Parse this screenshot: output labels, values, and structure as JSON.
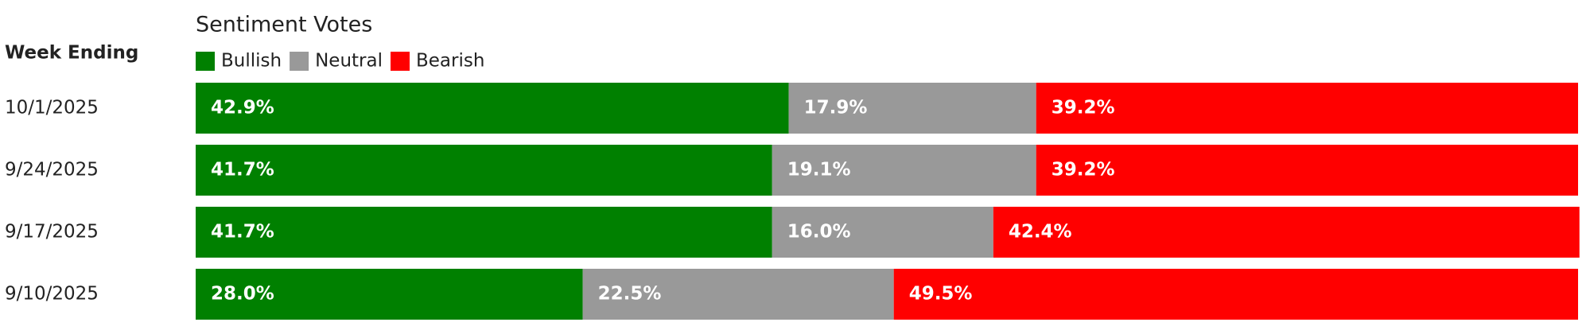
{
  "chart_data": {
    "type": "stacked-bar",
    "orientation": "horizontal",
    "title": "Sentiment Votes",
    "category_label": "Week Ending",
    "categories": [
      "10/1/2025",
      "9/24/2025",
      "9/17/2025",
      "9/10/2025"
    ],
    "series": [
      {
        "name": "Bullish",
        "color": "#008000",
        "values": [
          42.9,
          41.7,
          41.7,
          28.0
        ],
        "value_labels": [
          "42.9%",
          "41.7%",
          "41.7%",
          "28.0%"
        ]
      },
      {
        "name": "Neutral",
        "color": "#999999",
        "values": [
          17.9,
          19.1,
          16.0,
          22.5
        ],
        "value_labels": [
          "17.9%",
          "19.1%",
          "16.0%",
          "22.5%"
        ]
      },
      {
        "name": "Bearish",
        "color": "#ff0000",
        "values": [
          39.2,
          39.2,
          42.4,
          49.5
        ],
        "value_labels": [
          "39.2%",
          "39.2%",
          "42.4%",
          "49.5%"
        ]
      }
    ],
    "xlim": [
      0,
      100
    ]
  }
}
